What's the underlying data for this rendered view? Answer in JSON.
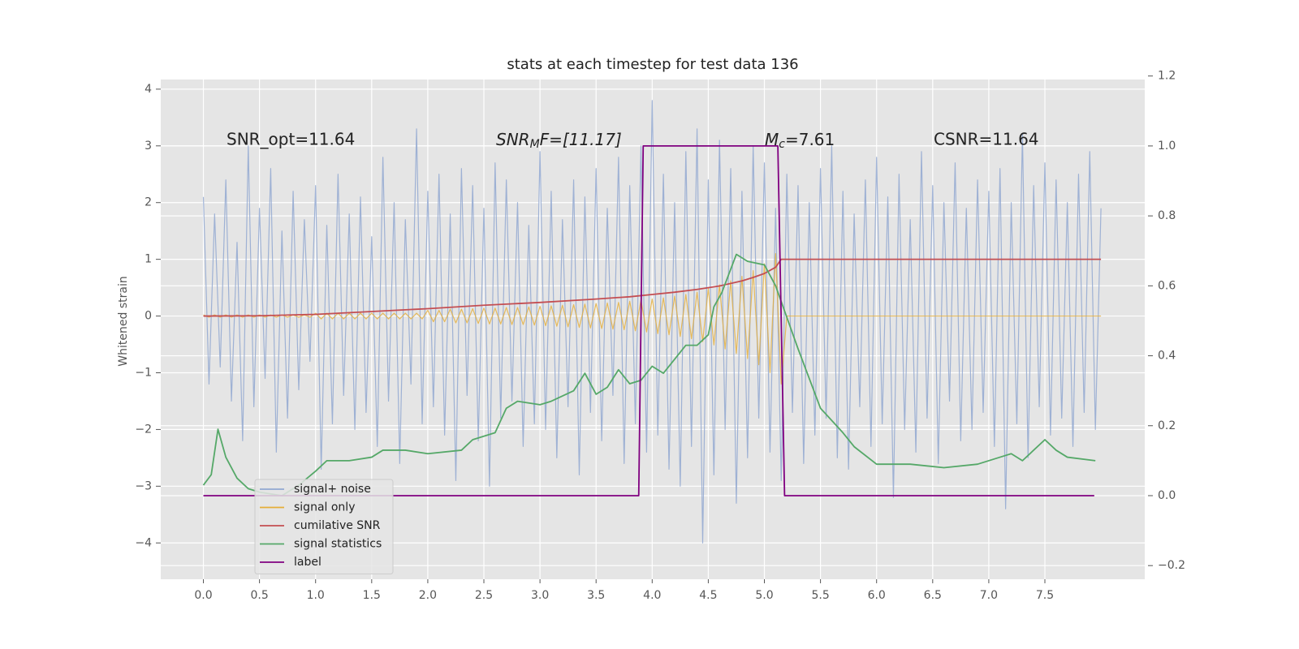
{
  "chart_data": {
    "type": "line",
    "title": "stats at each timestep for test data 136",
    "y_label": "Whitened strain",
    "annotations": [
      {
        "text": "SNR_opt=11.64"
      },
      {
        "text": "SNR",
        "sub": "M",
        "rest": "F=[11.17]"
      },
      {
        "text": "M",
        "sub": "c",
        "rest": "=7.61"
      },
      {
        "text": "CSNR=11.64"
      }
    ],
    "xlim": [
      -0.38,
      8.39
    ],
    "xticks": [
      {
        "value": 0,
        "label": "0.0"
      },
      0.5,
      {
        "value": 1,
        "label": "1.0"
      },
      1.5,
      {
        "value": 2,
        "label": "2.0"
      },
      2.5,
      {
        "value": 3,
        "label": "3.0"
      },
      3.5,
      {
        "value": 4,
        "label": "4.0"
      },
      4.5,
      {
        "value": 5,
        "label": "5.0"
      },
      5.5,
      {
        "value": 6,
        "label": "6.0"
      },
      6.5,
      {
        "value": 7,
        "label": "7.0"
      },
      7.5
    ],
    "ylim": [
      -4.64,
      4.17
    ],
    "yticks": [
      {
        "value": -4,
        "label": "−4"
      },
      {
        "value": -3,
        "label": "−3"
      },
      {
        "value": -2,
        "label": "−2"
      },
      {
        "value": -1,
        "label": "−1"
      },
      0,
      1,
      2,
      3,
      4
    ],
    "y2lim": [
      -0.239,
      1.19
    ],
    "y2ticks": [
      {
        "value": -0.2,
        "label": "−0.2"
      },
      {
        "value": 0,
        "label": "0.0"
      },
      0.2,
      0.4,
      0.6,
      0.8,
      {
        "value": 1,
        "label": "1.0"
      },
      1.2
    ],
    "grid": true,
    "legend": "lower left",
    "x": [
      0,
      0.05,
      0.1,
      0.15,
      0.2,
      0.25,
      0.3,
      0.35,
      0.4,
      0.45,
      0.5,
      0.55,
      0.6,
      0.65,
      0.7,
      0.75,
      0.8,
      0.85,
      0.9,
      0.95,
      1,
      1.05,
      1.1,
      1.15,
      1.2,
      1.25,
      1.3,
      1.35,
      1.4,
      1.45,
      1.5,
      1.55,
      1.6,
      1.65,
      1.7,
      1.75,
      1.8,
      1.85,
      1.9,
      1.95,
      2,
      2.05,
      2.1,
      2.15,
      2.2,
      2.25,
      2.3,
      2.35,
      2.4,
      2.45,
      2.5,
      2.55,
      2.6,
      2.65,
      2.7,
      2.75,
      2.8,
      2.85,
      2.9,
      2.95,
      3,
      3.05,
      3.1,
      3.15,
      3.2,
      3.25,
      3.3,
      3.35,
      3.4,
      3.45,
      3.5,
      3.55,
      3.6,
      3.65,
      3.7,
      3.75,
      3.8,
      3.85,
      3.9,
      3.95,
      4,
      4.05,
      4.1,
      4.15,
      4.2,
      4.25,
      4.3,
      4.35,
      4.4,
      4.45,
      4.5,
      4.55,
      4.6,
      4.65,
      4.7,
      4.75,
      4.8,
      4.85,
      4.9,
      4.95,
      5,
      5.05,
      5.1,
      5.15,
      5.2,
      5.25,
      5.3,
      5.35,
      5.4,
      5.45,
      5.5,
      5.55,
      5.6,
      5.65,
      5.7,
      5.75,
      5.8,
      5.85,
      5.9,
      5.95,
      6,
      6.05,
      6.1,
      6.15,
      6.2,
      6.25,
      6.3,
      6.35,
      6.4,
      6.45,
      6.5,
      6.55,
      6.6,
      6.65,
      6.7,
      6.75,
      6.8,
      6.85,
      6.9,
      6.95,
      7,
      7.05,
      7.1,
      7.15,
      7.2,
      7.25,
      7.3,
      7.35,
      7.4,
      7.45,
      7.5,
      7.55,
      7.6,
      7.65,
      7.7,
      7.75,
      7.8,
      7.85,
      7.9,
      7.95,
      8
    ],
    "series": [
      {
        "name": "signal+ noise",
        "color": "#92a8d1",
        "values": [
          2.1,
          -1.2,
          1.8,
          -0.9,
          2.4,
          -1.5,
          1.3,
          -2.2,
          3.0,
          -1.6,
          1.9,
          -1.1,
          2.6,
          -2.4,
          1.5,
          -1.8,
          2.2,
          -1.3,
          1.7,
          -0.8,
          2.3,
          -2.7,
          1.6,
          -1.9,
          2.5,
          -1.4,
          1.8,
          -2.0,
          2.1,
          -1.7,
          1.4,
          -2.3,
          2.8,
          -1.5,
          2.0,
          -2.6,
          1.7,
          -1.2,
          3.3,
          -1.9,
          2.2,
          -1.6,
          2.5,
          -2.1,
          1.8,
          -2.9,
          2.6,
          -1.4,
          2.3,
          -2.2,
          1.9,
          -3.0,
          2.7,
          -1.8,
          2.4,
          -1.5,
          2.0,
          -2.3,
          1.6,
          -1.9,
          2.9,
          -2.0,
          2.2,
          -2.5,
          1.7,
          -1.6,
          2.4,
          -2.8,
          2.1,
          -1.7,
          2.6,
          -2.2,
          1.9,
          -1.4,
          2.8,
          -2.6,
          2.3,
          -1.9,
          3.0,
          -2.4,
          3.8,
          -2.1,
          2.5,
          -2.7,
          2.0,
          -3.0,
          2.9,
          -2.3,
          3.3,
          -4.0,
          2.4,
          -2.8,
          3.1,
          -2.0,
          2.6,
          -3.3,
          2.2,
          -2.5,
          3.0,
          -1.8,
          2.7,
          -2.4,
          1.9,
          -2.9,
          2.5,
          -1.7,
          2.3,
          -2.6,
          2.0,
          -2.1,
          2.6,
          -1.8,
          3.0,
          -2.5,
          2.2,
          -2.7,
          1.8,
          -1.6,
          2.4,
          -2.3,
          2.8,
          -1.9,
          2.1,
          -3.2,
          2.5,
          -2.0,
          1.7,
          -2.4,
          2.9,
          -1.8,
          2.3,
          -2.6,
          2.0,
          -1.5,
          2.7,
          -2.2,
          1.9,
          -2.0,
          2.4,
          -1.7,
          2.2,
          -2.3,
          2.6,
          -3.4,
          2.0,
          -1.9,
          3.2,
          -2.5,
          2.3,
          -1.6,
          2.7,
          -2.1,
          2.4,
          -1.8,
          2.0,
          -2.3,
          2.5,
          -1.7,
          2.9,
          -2.0,
          1.9
        ]
      },
      {
        "name": "signal only",
        "color": "#e5ae38",
        "values": [
          0.02,
          -0.02,
          0.02,
          -0.02,
          0.02,
          -0.02,
          0.02,
          -0.02,
          0.02,
          -0.02,
          0.02,
          -0.02,
          0.02,
          -0.02,
          0.02,
          -0.02,
          0.02,
          -0.02,
          0.02,
          -0.02,
          0.05,
          -0.05,
          0.05,
          -0.05,
          0.05,
          -0.05,
          0.05,
          -0.05,
          0.05,
          -0.05,
          0.05,
          -0.05,
          0.05,
          -0.05,
          0.05,
          -0.05,
          0.05,
          -0.05,
          0.05,
          -0.05,
          0.1,
          -0.1,
          0.1,
          -0.1,
          0.12,
          -0.12,
          0.12,
          -0.12,
          0.13,
          -0.13,
          0.14,
          -0.14,
          0.14,
          -0.14,
          0.15,
          -0.15,
          0.15,
          -0.15,
          0.16,
          -0.16,
          0.17,
          -0.17,
          0.18,
          -0.18,
          0.19,
          -0.19,
          0.2,
          -0.2,
          0.21,
          -0.21,
          0.22,
          -0.22,
          0.23,
          -0.23,
          0.24,
          -0.24,
          0.26,
          -0.26,
          0.28,
          -0.28,
          0.3,
          -0.31,
          0.32,
          -0.33,
          0.35,
          -0.36,
          0.38,
          -0.4,
          0.42,
          -0.45,
          0.48,
          -0.51,
          0.55,
          -0.58,
          0.62,
          -0.66,
          0.7,
          -0.75,
          0.8,
          -0.86,
          0.92,
          -1.0,
          1.1,
          -1.2,
          0,
          0,
          0,
          0,
          0,
          0,
          0,
          0,
          0,
          0,
          0,
          0,
          0,
          0,
          0,
          0,
          0,
          0,
          0,
          0,
          0,
          0,
          0,
          0,
          0,
          0,
          0,
          0,
          0,
          0,
          0,
          0,
          0,
          0,
          0,
          0,
          0,
          0,
          0,
          0,
          0,
          0,
          0,
          0,
          0,
          0,
          0,
          0,
          0,
          0,
          0,
          0,
          0,
          0,
          0,
          0,
          0
        ]
      },
      {
        "name": "cumilative SNR",
        "color": "#c44e52",
        "x": [
          0,
          0.5,
          1,
          1.5,
          2,
          2.5,
          3,
          3.5,
          3.8,
          4,
          4.2,
          4.4,
          4.6,
          4.8,
          4.9,
          5,
          5.1,
          5.15,
          8
        ],
        "values": [
          0,
          0.005,
          0.03,
          0.08,
          0.13,
          0.19,
          0.24,
          0.3,
          0.34,
          0.38,
          0.42,
          0.47,
          0.53,
          0.62,
          0.68,
          0.75,
          0.86,
          1.0,
          1.0
        ]
      },
      {
        "name": "signal statistics",
        "color": "#55a868",
        "axis": "y2",
        "x": [
          0,
          0.07,
          0.13,
          0.2,
          0.3,
          0.4,
          0.5,
          0.7,
          0.85,
          1,
          1.1,
          1.3,
          1.5,
          1.6,
          1.8,
          2,
          2.3,
          2.4,
          2.6,
          2.7,
          2.8,
          3,
          3.1,
          3.3,
          3.4,
          3.5,
          3.6,
          3.7,
          3.8,
          3.9,
          4,
          4.1,
          4.2,
          4.3,
          4.4,
          4.5,
          4.55,
          4.62,
          4.75,
          4.85,
          5,
          5.1,
          5.2,
          5.3,
          5.5,
          5.7,
          5.8,
          6,
          6.3,
          6.6,
          6.9,
          7.1,
          7.2,
          7.3,
          7.5,
          7.6,
          7.7,
          7.95
        ],
        "values": [
          0.03,
          0.06,
          0.19,
          0.11,
          0.05,
          0.02,
          0.01,
          0.0,
          0.03,
          0.07,
          0.1,
          0.1,
          0.11,
          0.13,
          0.13,
          0.12,
          0.13,
          0.16,
          0.18,
          0.25,
          0.27,
          0.26,
          0.27,
          0.3,
          0.35,
          0.29,
          0.31,
          0.36,
          0.32,
          0.33,
          0.37,
          0.35,
          0.39,
          0.43,
          0.43,
          0.46,
          0.54,
          0.58,
          0.69,
          0.67,
          0.66,
          0.6,
          0.51,
          0.42,
          0.25,
          0.18,
          0.14,
          0.09,
          0.09,
          0.08,
          0.09,
          0.11,
          0.12,
          0.1,
          0.16,
          0.13,
          0.11,
          0.1
        ]
      },
      {
        "name": "label",
        "color": "#800080",
        "axis": "y2",
        "x": [
          0,
          3.88,
          3.92,
          5.12,
          5.18,
          7.94
        ],
        "values": [
          0,
          0,
          1,
          1,
          0,
          0
        ]
      }
    ]
  }
}
